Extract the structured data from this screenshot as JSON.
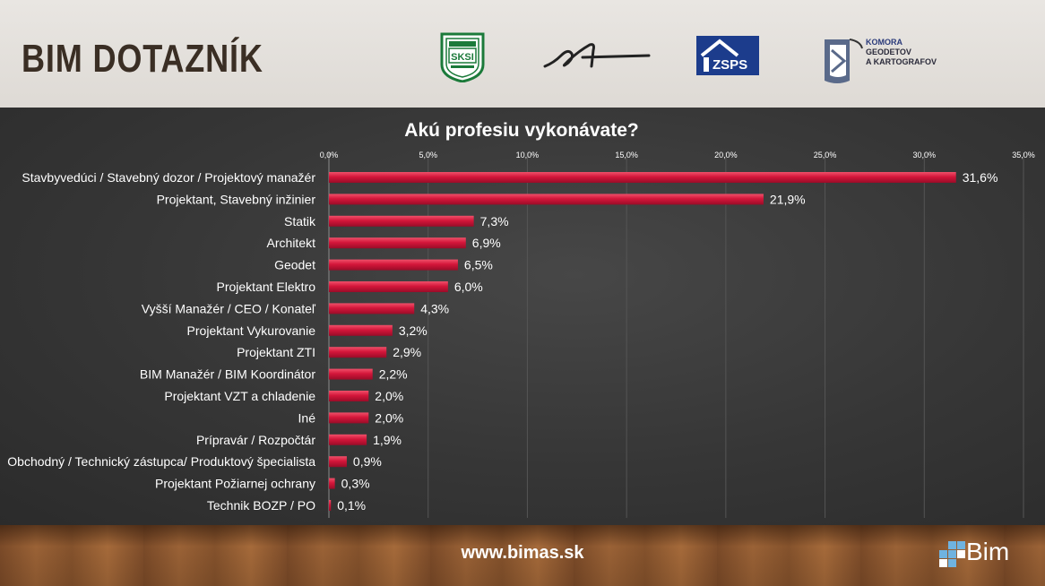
{
  "header": {
    "title": "BIM DOTAZNÍK",
    "logos": [
      {
        "name": "sksi-logo",
        "text": "SKSI"
      },
      {
        "name": "signature-logo"
      },
      {
        "name": "zsps-logo",
        "text": "ZSPS"
      },
      {
        "name": "komora-logo",
        "lines": [
          "KOMORA",
          "GEODETOV",
          "A KARTOGRAFOV"
        ]
      }
    ]
  },
  "chart_data": {
    "type": "bar",
    "orientation": "horizontal",
    "title": "Akú profesiu vykonávate?",
    "xlim": [
      0,
      35
    ],
    "ticks": [
      "0,0%",
      "5,0%",
      "10,0%",
      "15,0%",
      "20,0%",
      "25,0%",
      "30,0%",
      "35,0%"
    ],
    "tick_values": [
      0,
      5,
      10,
      15,
      20,
      25,
      30,
      35
    ],
    "grid": true,
    "categories": [
      "Stavbyvedúci / Stavebný dozor / Projektový manažér",
      "Projektant, Stavebný inžinier",
      "Statik",
      "Architekt",
      "Geodet",
      "Projektant Elektro",
      "Vyšší Manažér / CEO / Konateľ",
      "Projektant Vykurovanie",
      "Projektant ZTI",
      "BIM Manažér / BIM Koordinátor",
      "Projektant VZT a chladenie",
      "Iné",
      "Prípravár / Rozpočtár",
      "Obchodný / Technický zástupca/ Produktový špecialista",
      "Projektant Požiarnej ochrany",
      "Technik BOZP / PO"
    ],
    "values": [
      31.6,
      21.9,
      7.3,
      6.9,
      6.5,
      6.0,
      4.3,
      3.2,
      2.9,
      2.2,
      2.0,
      2.0,
      1.9,
      0.9,
      0.3,
      0.1
    ],
    "labels": [
      "31,6%",
      "21,9%",
      "7,3%",
      "6,9%",
      "6,5%",
      "6,0%",
      "4,3%",
      "3,2%",
      "2,9%",
      "2,2%",
      "2,0%",
      "2,0%",
      "1,9%",
      "0,9%",
      "0,3%",
      "0,1%"
    ],
    "bar_color": "#d4163a"
  },
  "footer": {
    "url": "www.bimas.sk",
    "brand": "Bim"
  }
}
